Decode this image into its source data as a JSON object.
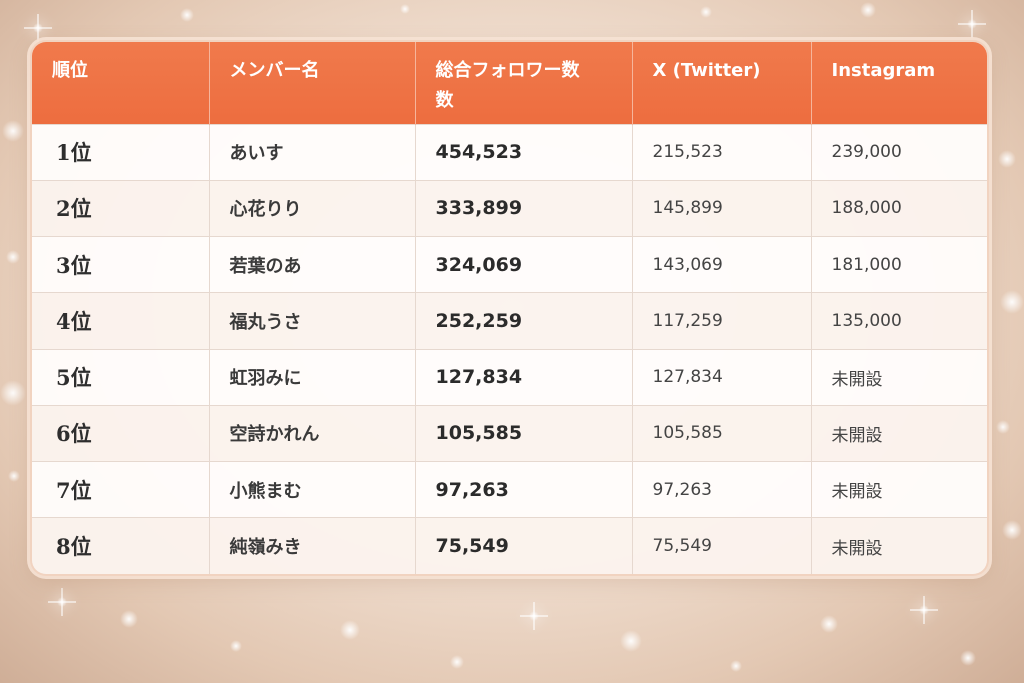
{
  "table": {
    "headers": [
      "順位",
      "メンバー名",
      "総合フォロワー数数",
      "X (Twitter)",
      "Instagram"
    ],
    "rows": [
      {
        "rank": "1位",
        "name": "あいす",
        "total": "454,523",
        "x": "215,523",
        "instagram": "239,000"
      },
      {
        "rank": "2位",
        "name": "心花りり",
        "total": "333,899",
        "x": "145,899",
        "instagram": "188,000"
      },
      {
        "rank": "3位",
        "name": "若葉のあ",
        "total": "324,069",
        "x": "143,069",
        "instagram": "181,000"
      },
      {
        "rank": "4位",
        "name": "福丸うさ",
        "total": "252,259",
        "x": "117,259",
        "instagram": "135,000"
      },
      {
        "rank": "5位",
        "name": "虹羽みに",
        "total": "127,834",
        "x": "127,834",
        "instagram": "未開設"
      },
      {
        "rank": "6位",
        "name": "空詩かれん",
        "total": "105,585",
        "x": "105,585",
        "instagram": "未開設"
      },
      {
        "rank": "7位",
        "name": "小熊まむ",
        "total": "97,263",
        "x": "97,263",
        "instagram": "未開設"
      },
      {
        "rank": "8位",
        "name": "純嶺みき",
        "total": "75,549",
        "x": "75,549",
        "instagram": "未開設"
      }
    ]
  },
  "colors": {
    "header_bg": "#ed6d3f",
    "header_text": "#ffffff",
    "border": "#e6d8cf",
    "background": "#f3e3d6"
  }
}
